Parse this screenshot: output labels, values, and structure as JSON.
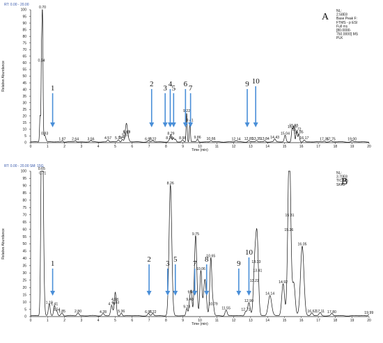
{
  "chart_data": [
    {
      "type": "line",
      "panel_label": "A",
      "header": "RT: 0.00 - 20.00",
      "info": [
        "NL:",
        "2.58E8",
        "Base Peak F:",
        "FTMS - p ESI",
        "Full ms",
        "[80.0000-",
        "750.0000]  MS",
        "PLK"
      ],
      "xlabel": "Time (min)",
      "ylabel": "Relative Abundance",
      "xlim": [
        0,
        20
      ],
      "ylim": [
        0,
        100
      ],
      "x_ticks": [
        "0",
        "1",
        "2",
        "3",
        "4",
        "5",
        "6",
        "7",
        "8",
        "9",
        "10",
        "11",
        "12",
        "13",
        "14",
        "15",
        "16",
        "17",
        "18",
        "19",
        "20"
      ],
      "y_ticks": [
        "0",
        "5",
        "10",
        "15",
        "20",
        "25",
        "30",
        "35",
        "40",
        "45",
        "50",
        "55",
        "60",
        "65",
        "70",
        "75",
        "80",
        "85",
        "90",
        "95",
        "100"
      ],
      "grid": false,
      "peaks": [
        {
          "rt": 0.56,
          "h": 20,
          "w": 0.03,
          "label": ""
        },
        {
          "rt": 0.64,
          "h": 60,
          "w": 0.025,
          "label": "0.64"
        },
        {
          "rt": 0.7,
          "h": 100,
          "w": 0.03,
          "label": "0.70"
        },
        {
          "rt": 0.83,
          "h": 5,
          "w": 0.06,
          "label": "0.83"
        },
        {
          "rt": 1.87,
          "h": 0.8,
          "w": 0.05,
          "label": "1.87"
        },
        {
          "rt": 2.64,
          "h": 0.8,
          "w": 0.05,
          "label": "2.64"
        },
        {
          "rt": 3.56,
          "h": 0.8,
          "w": 0.05,
          "label": "3.56"
        },
        {
          "rt": 4.57,
          "h": 1.5,
          "w": 0.05,
          "label": "4.57"
        },
        {
          "rt": 5.19,
          "h": 1.5,
          "w": 0.05,
          "label": "5.19"
        },
        {
          "rt": 5.42,
          "h": 2,
          "w": 0.05,
          "label": "5.42"
        },
        {
          "rt": 5.61,
          "h": 4,
          "w": 0.05,
          "label": "5.61"
        },
        {
          "rt": 5.67,
          "h": 6,
          "w": 0.05,
          "label": "5.67"
        },
        {
          "rt": 5.69,
          "h": 6,
          "w": 0.08,
          "label": "5.69"
        },
        {
          "rt": 6.96,
          "h": 0.8,
          "w": 0.05,
          "label": "6.96"
        },
        {
          "rt": 7.22,
          "h": 0.8,
          "w": 0.05,
          "label": "7.22"
        },
        {
          "rt": 8.2,
          "h": 1.5,
          "w": 0.05,
          "label": "8.20"
        },
        {
          "rt": 8.29,
          "h": 5,
          "w": 0.04,
          "label": "8.29"
        },
        {
          "rt": 8.44,
          "h": 3,
          "w": 0.04,
          "label": ""
        },
        {
          "rt": 8.56,
          "h": 2,
          "w": 0.04,
          "label": ""
        },
        {
          "rt": 8.98,
          "h": 1.5,
          "w": 0.05,
          "label": "8.98"
        },
        {
          "rt": 9.22,
          "h": 22,
          "w": 0.03,
          "label": "9.22"
        },
        {
          "rt": 9.41,
          "h": 15,
          "w": 0.03,
          "label": "9.41"
        },
        {
          "rt": 9.86,
          "h": 2,
          "w": 0.04,
          "label": "9.86"
        },
        {
          "rt": 10.66,
          "h": 1,
          "w": 0.05,
          "label": "10.66"
        },
        {
          "rt": 12.14,
          "h": 0.8,
          "w": 0.05,
          "label": "12.14"
        },
        {
          "rt": 12.89,
          "h": 1,
          "w": 0.05,
          "label": "12.89"
        },
        {
          "rt": 13.35,
          "h": 1,
          "w": 0.05,
          "label": "13.35"
        },
        {
          "rt": 13.84,
          "h": 1,
          "w": 0.05,
          "label": "13.84"
        },
        {
          "rt": 14.43,
          "h": 2,
          "w": 0.05,
          "label": "14.43"
        },
        {
          "rt": 15.04,
          "h": 5,
          "w": 0.05,
          "label": "15.04"
        },
        {
          "rt": 15.45,
          "h": 10,
          "w": 0.04,
          "label": "15.45"
        },
        {
          "rt": 15.55,
          "h": 11,
          "w": 0.04,
          "label": "15.55"
        },
        {
          "rt": 15.72,
          "h": 8,
          "w": 0.04,
          "label": "15.72"
        },
        {
          "rt": 15.85,
          "h": 6,
          "w": 0.04,
          "label": "15.85"
        },
        {
          "rt": 16.17,
          "h": 1.5,
          "w": 0.05,
          "label": "16.17"
        },
        {
          "rt": 17.35,
          "h": 0.8,
          "w": 0.05,
          "label": "17.35"
        },
        {
          "rt": 17.75,
          "h": 0.8,
          "w": 0.05,
          "label": "17.75"
        },
        {
          "rt": 19.0,
          "h": 0.8,
          "w": 0.05,
          "label": "19.00"
        }
      ],
      "annotations": [
        {
          "text": "1",
          "rt": 1.3
        },
        {
          "text": "2",
          "rt": 7.15
        },
        {
          "text": "3",
          "rt": 7.95
        },
        {
          "text": "4",
          "rt": 8.25
        },
        {
          "text": "5",
          "rt": 8.45
        },
        {
          "text": "6",
          "rt": 9.15
        },
        {
          "text": "7",
          "rt": 9.45
        },
        {
          "text": "9",
          "rt": 12.8
        },
        {
          "text": "10",
          "rt": 13.3
        }
      ]
    },
    {
      "type": "line",
      "panel_label": "B",
      "header": "RT: 0.00 - 20.00  SM: 15G",
      "info": [
        "NL:",
        "3.70E8",
        "TIC  MS",
        "SKK2"
      ],
      "xlabel": "Time (min)",
      "ylabel": "Relative Abundance",
      "xlim": [
        0,
        20
      ],
      "ylim": [
        0,
        100
      ],
      "x_ticks": [
        "0",
        "1",
        "2",
        "3",
        "4",
        "5",
        "6",
        "7",
        "8",
        "9",
        "10",
        "11",
        "12",
        "13",
        "14",
        "15",
        "16",
        "17",
        "18",
        "19",
        "20"
      ],
      "y_ticks": [
        "0",
        "5",
        "10",
        "15",
        "20",
        "25",
        "30",
        "35",
        "40",
        "45",
        "50",
        "55",
        "60",
        "65",
        "70",
        "75",
        "80",
        "85",
        "90",
        "95",
        "100"
      ],
      "grid": false,
      "peaks": [
        {
          "rt": 0.65,
          "h": 100,
          "w": 0.05,
          "label": "0.65"
        },
        {
          "rt": 0.71,
          "h": 97,
          "w": 0.06,
          "label": "0.71"
        },
        {
          "rt": 1.1,
          "h": 8,
          "w": 0.05,
          "label": "1.10"
        },
        {
          "rt": 1.41,
          "h": 7,
          "w": 0.05,
          "label": "1.41"
        },
        {
          "rt": 1.54,
          "h": 3,
          "w": 0.05,
          "label": "1.54"
        },
        {
          "rt": 1.85,
          "h": 2,
          "w": 0.06,
          "label": "1.85"
        },
        {
          "rt": 2.8,
          "h": 2,
          "w": 0.06,
          "label": "2.80"
        },
        {
          "rt": 4.28,
          "h": 1.5,
          "w": 0.06,
          "label": "4.28"
        },
        {
          "rt": 4.79,
          "h": 7,
          "w": 0.06,
          "label": "4.79"
        },
        {
          "rt": 4.98,
          "h": 10,
          "w": 0.05,
          "label": "4.98"
        },
        {
          "rt": 5.03,
          "h": 8,
          "w": 0.05,
          "label": "5.03"
        },
        {
          "rt": 5.36,
          "h": 2,
          "w": 0.05,
          "label": "5.36"
        },
        {
          "rt": 6.96,
          "h": 1.5,
          "w": 0.05,
          "label": "6.96"
        },
        {
          "rt": 7.22,
          "h": 1.5,
          "w": 0.05,
          "label": "7.22"
        },
        {
          "rt": 8.26,
          "h": 90,
          "w": 0.08,
          "label": "8.26"
        },
        {
          "rt": 9.23,
          "h": 5,
          "w": 0.05,
          "label": "9.23"
        },
        {
          "rt": 9.4,
          "h": 10,
          "w": 0.05,
          "label": "9.40"
        },
        {
          "rt": 9.49,
          "h": 15,
          "w": 0.05,
          "label": "9.49"
        },
        {
          "rt": 9.75,
          "h": 55,
          "w": 0.07,
          "label": "9.75"
        },
        {
          "rt": 10.06,
          "h": 31,
          "w": 0.06,
          "label": "10.06"
        },
        {
          "rt": 10.3,
          "h": 25,
          "w": 0.08,
          "label": ""
        },
        {
          "rt": 10.65,
          "h": 40,
          "w": 0.06,
          "label": "10.65"
        },
        {
          "rt": 10.79,
          "h": 7,
          "w": 0.05,
          "label": "10.79"
        },
        {
          "rt": 11.55,
          "h": 4,
          "w": 0.06,
          "label": "11.55"
        },
        {
          "rt": 12.71,
          "h": 3,
          "w": 0.06,
          "label": "12.71"
        },
        {
          "rt": 12.9,
          "h": 9,
          "w": 0.07,
          "label": "12.90"
        },
        {
          "rt": 13.22,
          "h": 23,
          "w": 0.07,
          "label": "13.22"
        },
        {
          "rt": 13.33,
          "h": 36,
          "w": 0.08,
          "label": "13.33"
        },
        {
          "rt": 13.41,
          "h": 30,
          "w": 0.07,
          "label": "13.41"
        },
        {
          "rt": 14.14,
          "h": 14,
          "w": 0.1,
          "label": "14.14"
        },
        {
          "rt": 14.92,
          "h": 22,
          "w": 0.08,
          "label": "14.92"
        },
        {
          "rt": 15.26,
          "h": 58,
          "w": 0.08,
          "label": "15.26"
        },
        {
          "rt": 15.31,
          "h": 68,
          "w": 0.08,
          "label": "15.31"
        },
        {
          "rt": 15.55,
          "h": 22,
          "w": 0.08,
          "label": ""
        },
        {
          "rt": 16.05,
          "h": 48,
          "w": 0.1,
          "label": "16.05"
        },
        {
          "rt": 16.62,
          "h": 2,
          "w": 0.06,
          "label": "16.62"
        },
        {
          "rt": 17.11,
          "h": 2,
          "w": 0.06,
          "label": "17.11"
        },
        {
          "rt": 17.8,
          "h": 1.5,
          "w": 0.06,
          "label": "17.80"
        },
        {
          "rt": 19.99,
          "h": 1,
          "w": 0.05,
          "label": "19.99"
        }
      ],
      "annotations": [
        {
          "text": "1",
          "rt": 1.3
        },
        {
          "text": "2",
          "rt": 7.0
        },
        {
          "text": "3",
          "rt": 8.1
        },
        {
          "text": "5",
          "rt": 8.55
        },
        {
          "text": "7",
          "rt": 9.7
        },
        {
          "text": "8",
          "rt": 10.4
        },
        {
          "text": "9",
          "rt": 12.3
        },
        {
          "text": "10",
          "rt": 12.9
        }
      ]
    }
  ]
}
